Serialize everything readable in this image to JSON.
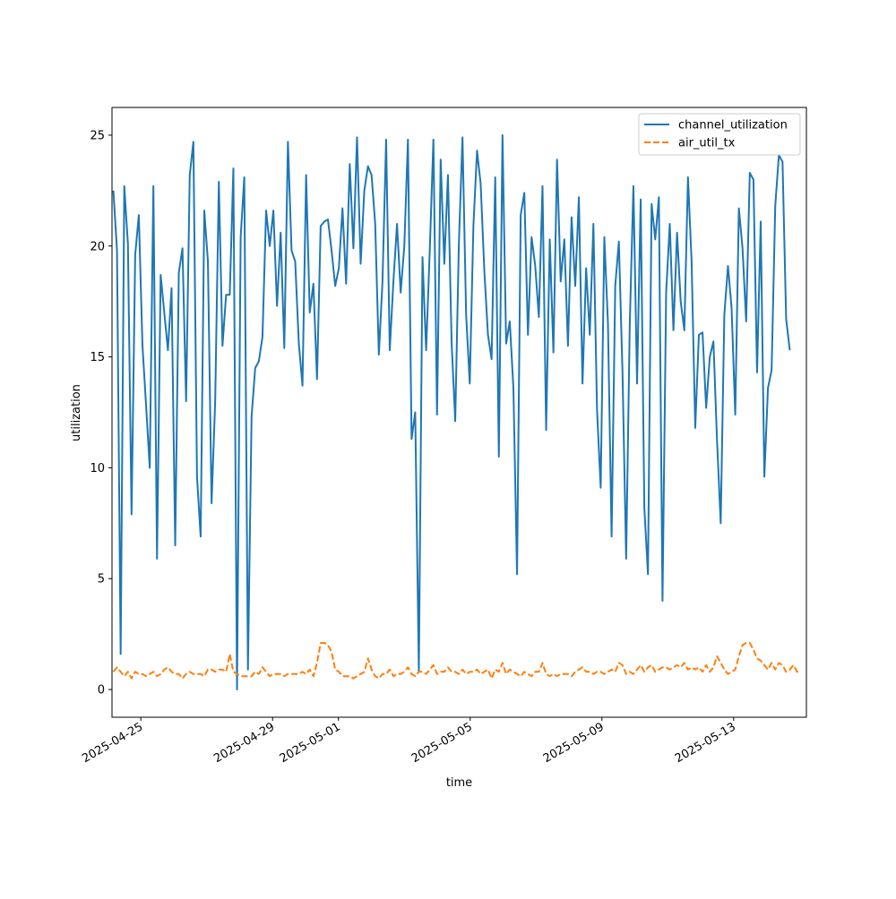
{
  "chart_data": {
    "type": "line",
    "xlabel": "time",
    "ylabel": "utilization",
    "xlim": [
      "2025-04-24T03:00",
      "2025-05-15T05:00"
    ],
    "ylim": [
      -1.25,
      26.25
    ],
    "x_ticks": [
      "2025-04-25",
      "2025-04-29",
      "2025-05-01",
      "2025-05-05",
      "2025-05-09",
      "2025-05-13"
    ],
    "y_ticks": [
      0,
      5,
      10,
      15,
      20,
      25
    ],
    "grid": false,
    "legend_position": "upper right",
    "series": [
      {
        "name": "channel_utilization",
        "color": "#1f77b4",
        "style": "solid",
        "x_start": "2025-04-24T04:00",
        "step_hours": 2.65,
        "values": [
          22.5,
          19.8,
          1.6,
          22.7,
          20.1,
          7.9,
          19.6,
          21.4,
          15.5,
          12.8,
          10.0,
          22.7,
          5.9,
          18.7,
          17.0,
          15.3,
          18.1,
          6.5,
          18.8,
          19.9,
          13.0,
          23.2,
          24.7,
          9.6,
          6.9,
          21.6,
          19.3,
          8.4,
          13.0,
          22.9,
          15.5,
          17.8,
          17.8,
          23.5,
          0.0,
          20.4,
          23.1,
          0.9,
          12.3,
          14.5,
          14.8,
          15.9,
          21.6,
          20.0,
          21.6,
          17.3,
          20.6,
          15.4,
          24.7,
          19.8,
          19.3,
          15.6,
          13.7,
          23.2,
          17.0,
          18.3,
          14.0,
          20.9,
          21.1,
          21.2,
          19.8,
          18.2,
          19.0,
          21.7,
          18.3,
          23.7,
          19.9,
          24.9,
          19.2,
          22.5,
          23.6,
          23.2,
          21.0,
          15.1,
          18.4,
          24.8,
          15.3,
          18.4,
          21.0,
          17.9,
          20.0,
          24.8,
          11.3,
          12.5,
          0.8,
          19.5,
          15.3,
          19.8,
          24.8,
          12.4,
          23.9,
          19.2,
          23.2,
          15.7,
          12.1,
          20.1,
          24.9,
          16.9,
          13.8,
          20.9,
          24.3,
          22.8,
          18.9,
          16.0,
          14.9,
          23.1,
          10.5,
          25.0,
          15.6,
          16.6,
          13.6,
          5.2,
          21.4,
          22.4,
          16.0,
          20.4,
          19.1,
          16.8,
          22.7,
          11.7,
          20.3,
          15.2,
          23.9,
          18.4,
          20.3,
          15.5,
          21.3,
          18.2,
          22.2,
          13.8,
          19.0,
          16.0,
          21.0,
          12.6,
          9.1,
          20.4,
          16.5,
          6.9,
          18.2,
          20.2,
          14.3,
          5.9,
          16.5,
          22.7,
          13.8,
          22.1,
          8.2,
          5.2,
          21.9,
          20.3,
          22.2,
          4.0,
          17.9,
          21.0,
          16.2,
          20.6,
          17.5,
          16.2,
          23.1,
          19.3,
          11.8,
          16.0,
          16.1,
          12.7,
          15.0,
          15.7,
          11.2,
          7.5,
          16.9,
          19.1,
          17.2,
          12.4,
          21.7,
          19.9,
          16.6,
          23.3,
          23.0,
          14.3,
          21.1,
          9.6,
          13.6,
          14.4,
          21.8,
          24.1,
          23.8,
          16.7,
          15.3
        ]
      },
      {
        "name": "air_util_tx",
        "color": "#ff7f0e",
        "style": "dashed",
        "x_start": "2025-04-24T04:00",
        "step_hours": 2.65,
        "values": [
          0.8,
          1.0,
          0.8,
          0.6,
          0.8,
          0.5,
          0.8,
          0.7,
          0.7,
          0.6,
          0.7,
          0.8,
          0.6,
          0.7,
          0.9,
          1.0,
          0.8,
          0.7,
          0.7,
          0.5,
          0.7,
          0.8,
          0.7,
          0.7,
          0.7,
          0.6,
          0.9,
          0.9,
          0.8,
          0.9,
          0.9,
          0.8,
          1.6,
          0.8,
          0.7,
          0.6,
          0.6,
          0.6,
          0.6,
          0.8,
          0.7,
          1.0,
          0.8,
          0.6,
          0.7,
          0.7,
          0.7,
          0.6,
          0.7,
          0.7,
          0.7,
          0.7,
          0.8,
          0.7,
          0.9,
          0.6,
          1.2,
          2.1,
          2.1,
          2.0,
          1.7,
          0.9,
          0.8,
          0.6,
          0.6,
          0.6,
          0.5,
          0.6,
          0.7,
          0.8,
          1.4,
          0.9,
          0.6,
          0.5,
          0.7,
          0.7,
          0.9,
          0.6,
          0.7,
          0.7,
          0.8,
          1.0,
          0.7,
          0.6,
          0.8,
          0.8,
          0.7,
          0.9,
          1.1,
          0.7,
          0.8,
          0.8,
          1.0,
          0.8,
          0.8,
          0.7,
          0.9,
          0.7,
          0.8,
          0.8,
          0.9,
          0.7,
          0.8,
          0.9,
          0.5,
          0.9,
          0.8,
          1.2,
          0.7,
          0.9,
          0.8,
          0.7,
          0.6,
          0.8,
          0.7,
          0.6,
          0.8,
          0.8,
          1.2,
          0.7,
          0.6,
          0.7,
          0.6,
          0.7,
          0.7,
          0.7,
          0.6,
          0.8,
          0.9,
          1.0,
          0.8,
          0.8,
          0.7,
          0.8,
          0.8,
          0.7,
          0.8,
          0.9,
          0.8,
          1.2,
          1.1,
          0.7,
          0.8,
          0.7,
          0.9,
          1.1,
          0.8,
          1.0,
          1.1,
          0.8,
          0.9,
          1.0,
          1.0,
          0.9,
          1.0,
          1.1,
          1.0,
          1.2,
          0.9,
          1.0,
          0.9,
          1.0,
          0.8,
          1.1,
          0.8,
          1.0,
          1.5,
          1.2,
          0.9,
          0.7,
          0.8,
          0.9,
          1.5,
          2.0,
          2.1,
          2.1,
          1.8,
          1.4,
          1.3,
          1.1,
          0.9,
          1.2,
          0.9,
          1.2,
          1.1,
          0.8,
          0.9,
          1.1,
          0.8,
          0.8
        ]
      }
    ]
  }
}
